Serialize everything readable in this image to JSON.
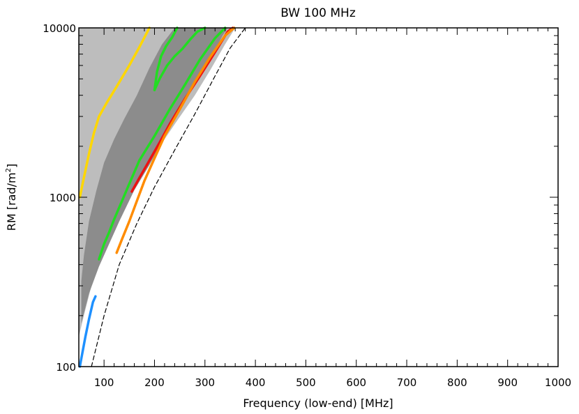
{
  "chart_data": {
    "type": "contour",
    "title": "BW 100 MHz",
    "xlabel": "Frequency (low-end) [MHz]",
    "ylabel_main": "RM ",
    "ylabel_unit": "[rad/m",
    "ylabel_sup": "2",
    "ylabel_close": "]",
    "xlim": [
      50,
      1000
    ],
    "ylim": [
      100,
      10000
    ],
    "yscale": "log",
    "x_ticks": [
      100,
      200,
      300,
      400,
      500,
      600,
      700,
      800,
      900,
      1000
    ],
    "x_tick_labels": [
      "100",
      "200",
      "300",
      "400",
      "500",
      "600",
      "700",
      "800",
      "900",
      "1000"
    ],
    "y_ticks": [
      100,
      1000,
      10000
    ],
    "y_tick_labels": [
      "100",
      "1000",
      "10000"
    ],
    "colors": {
      "light_region": "#bdbdbd",
      "dark_region": "#8c8c8c",
      "yellow": "#ffd700",
      "green": "#22dd22",
      "red": "#ee1111",
      "orange": "#ff8c00",
      "blue": "#1e90ff",
      "dashed": "#000000"
    },
    "series": [
      {
        "name": "yellow-contour",
        "color": "yellow",
        "points": [
          [
            52,
            1000
          ],
          [
            60,
            1300
          ],
          [
            70,
            1800
          ],
          [
            80,
            2400
          ],
          [
            90,
            3000
          ],
          [
            105,
            3600
          ],
          [
            125,
            4500
          ],
          [
            150,
            6000
          ],
          [
            170,
            7700
          ],
          [
            190,
            10000
          ]
        ]
      },
      {
        "name": "green-outer-contour",
        "color": "green",
        "points": [
          [
            90,
            430
          ],
          [
            100,
            530
          ],
          [
            110,
            620
          ],
          [
            120,
            740
          ],
          [
            130,
            870
          ],
          [
            150,
            1200
          ],
          [
            170,
            1650
          ],
          [
            200,
            2300
          ],
          [
            230,
            3300
          ],
          [
            260,
            4600
          ],
          [
            290,
            6500
          ],
          [
            320,
            8700
          ],
          [
            340,
            10000
          ]
        ]
      },
      {
        "name": "green-upper-loop",
        "color": "green",
        "points": [
          [
            200,
            4300
          ],
          [
            210,
            5000
          ],
          [
            225,
            6000
          ],
          [
            240,
            6800
          ],
          [
            255,
            7500
          ],
          [
            270,
            8500
          ],
          [
            285,
            9500
          ],
          [
            300,
            10000
          ]
        ]
      },
      {
        "name": "green-upper-loop-inner",
        "color": "green",
        "points": [
          [
            200,
            4300
          ],
          [
            205,
            5500
          ],
          [
            213,
            6800
          ],
          [
            223,
            7800
          ],
          [
            235,
            8800
          ],
          [
            245,
            10000
          ]
        ]
      },
      {
        "name": "red-contour",
        "color": "red",
        "points": [
          [
            155,
            1080
          ],
          [
            170,
            1300
          ],
          [
            190,
            1650
          ],
          [
            210,
            2100
          ],
          [
            230,
            2700
          ],
          [
            260,
            3800
          ],
          [
            290,
            5200
          ],
          [
            320,
            7200
          ],
          [
            345,
            9500
          ],
          [
            355,
            10000
          ]
        ]
      },
      {
        "name": "orange-contour",
        "color": "orange",
        "points": [
          [
            125,
            470
          ],
          [
            135,
            560
          ],
          [
            150,
            720
          ],
          [
            165,
            950
          ],
          [
            180,
            1250
          ],
          [
            200,
            1700
          ],
          [
            220,
            2300
          ],
          [
            250,
            3300
          ],
          [
            280,
            4800
          ],
          [
            310,
            6700
          ],
          [
            340,
            9000
          ],
          [
            358,
            10000
          ]
        ]
      },
      {
        "name": "blue-contour",
        "color": "blue",
        "points": [
          [
            52,
            100
          ],
          [
            58,
            125
          ],
          [
            63,
            150
          ],
          [
            70,
            190
          ],
          [
            78,
            240
          ],
          [
            83,
            260
          ]
        ]
      },
      {
        "name": "dashed-boundary",
        "color": "dashed",
        "points": [
          [
            75,
            100
          ],
          [
            100,
            200
          ],
          [
            130,
            400
          ],
          [
            165,
            700
          ],
          [
            200,
            1150
          ],
          [
            240,
            1900
          ],
          [
            280,
            3100
          ],
          [
            320,
            5200
          ],
          [
            350,
            7600
          ],
          [
            380,
            10000
          ]
        ]
      }
    ],
    "regions": [
      {
        "name": "light-gray-region",
        "color": "light_region",
        "points": [
          [
            50,
            10000
          ],
          [
            50,
            150
          ],
          [
            60,
            200
          ],
          [
            75,
            300
          ],
          [
            95,
            440
          ],
          [
            115,
            600
          ],
          [
            140,
            900
          ],
          [
            170,
            1300
          ],
          [
            200,
            1800
          ],
          [
            240,
            2700
          ],
          [
            280,
            4000
          ],
          [
            310,
            5600
          ],
          [
            340,
            8000
          ],
          [
            360,
            10000
          ]
        ]
      },
      {
        "name": "dark-gray-band",
        "color": "dark_region",
        "points": [
          [
            55,
            180
          ],
          [
            70,
            270
          ],
          [
            90,
            390
          ],
          [
            110,
            530
          ],
          [
            130,
            720
          ],
          [
            160,
            1100
          ],
          [
            190,
            1550
          ],
          [
            220,
            2250
          ],
          [
            250,
            3200
          ],
          [
            280,
            4600
          ],
          [
            310,
            6500
          ],
          [
            335,
            9000
          ],
          [
            345,
            10000
          ],
          [
            240,
            10000
          ],
          [
            215,
            8000
          ],
          [
            190,
            5800
          ],
          [
            165,
            4000
          ],
          [
            140,
            2900
          ],
          [
            120,
            2200
          ],
          [
            100,
            1600
          ],
          [
            85,
            1100
          ],
          [
            70,
            720
          ],
          [
            60,
            450
          ],
          [
            55,
            320
          ]
        ]
      }
    ]
  }
}
